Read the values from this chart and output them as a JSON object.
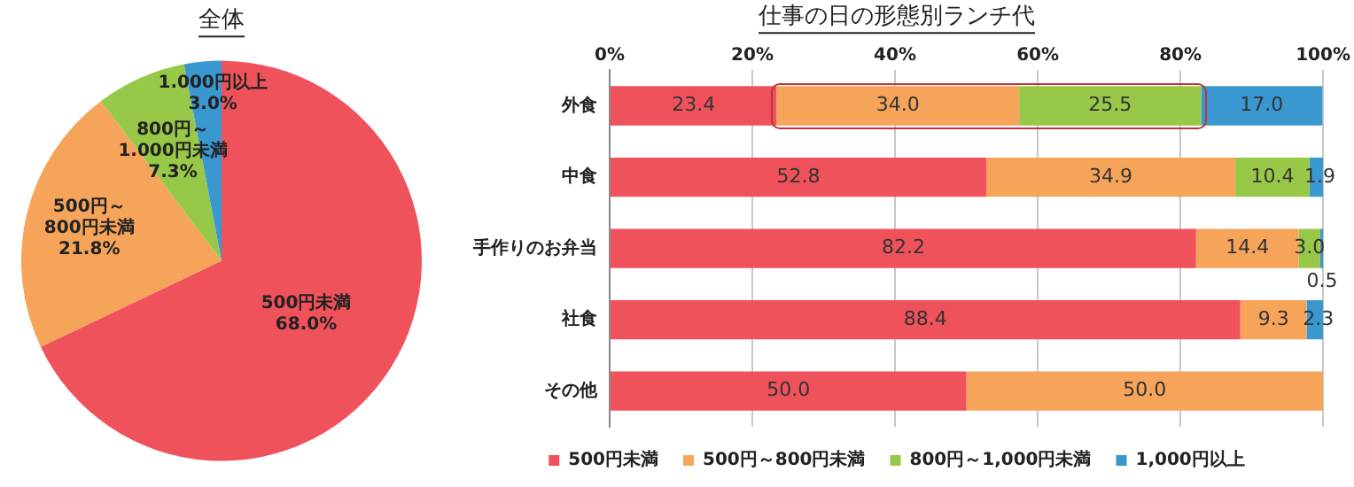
{
  "chart_data": [
    {
      "type": "pie",
      "title": "全体",
      "categories": [
        "500円未満",
        "500円～\n800円未満",
        "800円～\n1.000円未満",
        "1.000円以上"
      ],
      "values": [
        68.0,
        21.8,
        7.3,
        3.0
      ],
      "colors": [
        "#f0525c",
        "#f6a45a",
        "#98c848",
        "#3a98d0"
      ],
      "value_labels": [
        "68.0%",
        "21.8%",
        "7.3%",
        "3.0%"
      ],
      "legend": false
    },
    {
      "type": "bar",
      "orientation": "horizontal",
      "stacked": true,
      "title": "仕事の日の形態別ランチ代",
      "categories": [
        "外食",
        "中食",
        "手作りのお弁当",
        "社食",
        "その他"
      ],
      "series": [
        {
          "name": "500円未満",
          "color": "#f0525c",
          "values": [
            23.4,
            52.8,
            82.2,
            88.4,
            50.0
          ],
          "value_labels": [
            "23.4",
            "52.8",
            "82.2",
            "88.4",
            "50.0"
          ]
        },
        {
          "name": "500円～800円未満",
          "color": "#f6a45a",
          "values": [
            34.0,
            34.9,
            14.4,
            9.3,
            50.0
          ],
          "value_labels": [
            "34.0",
            "34.9",
            "14.4",
            "9.3",
            "50.0"
          ]
        },
        {
          "name": "800円～1,000円未満",
          "color": "#98c848",
          "values": [
            25.5,
            10.4,
            3.0,
            null,
            null
          ],
          "value_labels": [
            "25.5",
            "10.4",
            "3.0",
            null,
            null
          ]
        },
        {
          "name": "1,000円以上",
          "color": "#3a98d0",
          "values": [
            17.0,
            1.9,
            0.5,
            2.3,
            null
          ],
          "value_labels": [
            "17.0",
            "1.9",
            "0.5",
            "2.3",
            null
          ]
        }
      ],
      "xlim": [
        0,
        100
      ],
      "xticks": [
        {
          "value": 0,
          "label": "0%"
        },
        {
          "value": 20,
          "label": "20%"
        },
        {
          "value": 40,
          "label": "40%"
        },
        {
          "value": 60,
          "label": "60%"
        },
        {
          "value": 80,
          "label": "80%"
        },
        {
          "value": 100,
          "label": "100%"
        }
      ],
      "grid": "x",
      "legend": "bottom"
    }
  ]
}
